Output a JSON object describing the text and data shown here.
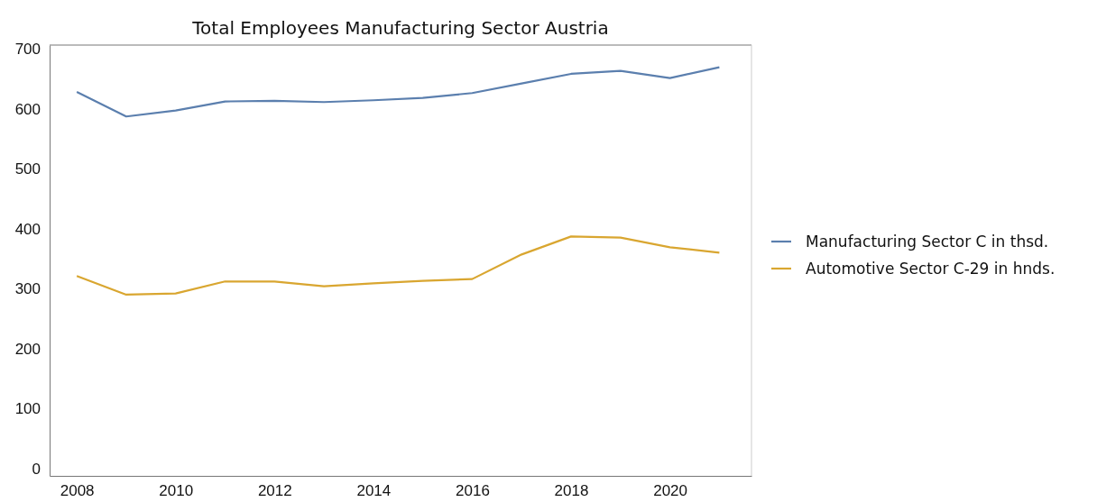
{
  "chart_data": {
    "type": "line",
    "title": "Total Employees Manufacturing Sector Austria",
    "x": [
      2008,
      2009,
      2010,
      2011,
      2012,
      2013,
      2014,
      2015,
      2016,
      2017,
      2018,
      2019,
      2020,
      2021
    ],
    "series": [
      {
        "name": "Manufacturing Sector C in thsd.",
        "color": "#5b7fae",
        "values": [
          628,
          587,
          597,
          612,
          613,
          611,
          614,
          618,
          626,
          642,
          658,
          663,
          651,
          669
        ]
      },
      {
        "name": "Automotive Sector C-29 in hnds.",
        "color": "#d9a630",
        "values": [
          321,
          290,
          292,
          312,
          312,
          304,
          309,
          313,
          316,
          357,
          387,
          385,
          369,
          360
        ]
      }
    ],
    "xlim": [
      2007.45,
      2021.65
    ],
    "xticks": [
      2008,
      2010,
      2012,
      2014,
      2016,
      2018,
      2020
    ],
    "ylim": [
      -12,
      706
    ],
    "yticks": [
      0,
      100,
      200,
      300,
      400,
      500,
      600,
      700
    ],
    "grid": false,
    "legend": "right",
    "marker": "none",
    "line_style": "solid"
  }
}
